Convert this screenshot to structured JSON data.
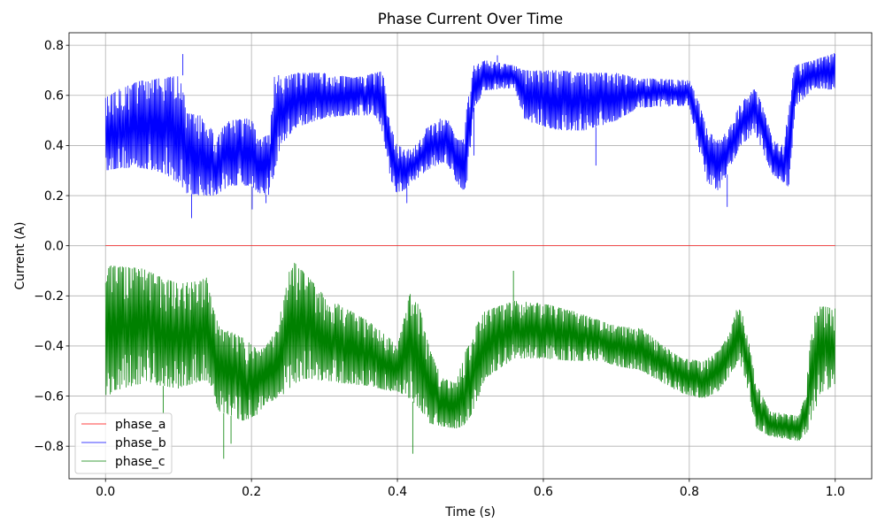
{
  "chart_data": {
    "type": "line",
    "title": "Phase Current Over Time",
    "xlabel": "Time (s)",
    "ylabel": "Current (A)",
    "xlim": [
      -0.05,
      1.05
    ],
    "ylim": [
      -0.93,
      0.85
    ],
    "grid": true,
    "legend": "lower-left",
    "xticks": [
      {
        "value": 0.0,
        "label": "0.0"
      },
      {
        "value": 0.2,
        "label": "0.2"
      },
      {
        "value": 0.4,
        "label": "0.4"
      },
      {
        "value": 0.6,
        "label": "0.6"
      },
      {
        "value": 0.8,
        "label": "0.8"
      },
      {
        "value": 1.0,
        "label": "1.0"
      }
    ],
    "yticks": [
      {
        "value": 0.8,
        "label": "0.8"
      },
      {
        "value": 0.6,
        "label": "0.6"
      },
      {
        "value": 0.4,
        "label": "0.4"
      },
      {
        "value": 0.2,
        "label": "0.2"
      },
      {
        "value": 0.0,
        "label": "0.0"
      },
      {
        "value": -0.2,
        "label": "−0.2"
      },
      {
        "value": -0.4,
        "label": "−0.4"
      },
      {
        "value": -0.6,
        "label": "−0.6"
      },
      {
        "value": -0.8,
        "label": "−0.8"
      }
    ],
    "series": [
      {
        "name": "phase_a",
        "color": "#ff0000",
        "x": [
          0.0,
          1.0
        ],
        "y": [
          0.0,
          0.0
        ]
      },
      {
        "name": "phase_b",
        "color": "#0000ff",
        "x": [
          0.0,
          0.02,
          0.05,
          0.08,
          0.1,
          0.106,
          0.11,
          0.13,
          0.145,
          0.15,
          0.16,
          0.17,
          0.2,
          0.21,
          0.225,
          0.232,
          0.24,
          0.26,
          0.3,
          0.34,
          0.37,
          0.38,
          0.39,
          0.4,
          0.42,
          0.44,
          0.46,
          0.47,
          0.48,
          0.49,
          0.495,
          0.505,
          0.52,
          0.56,
          0.575,
          0.62,
          0.66,
          0.7,
          0.73,
          0.8,
          0.81,
          0.825,
          0.84,
          0.855,
          0.87,
          0.89,
          0.9,
          0.915,
          0.93,
          0.937,
          0.945,
          0.97,
          1.0
        ],
        "upper": [
          0.59,
          0.63,
          0.66,
          0.67,
          0.68,
          0.68,
          0.53,
          0.52,
          0.48,
          0.41,
          0.47,
          0.5,
          0.51,
          0.42,
          0.45,
          0.7,
          0.67,
          0.69,
          0.69,
          0.67,
          0.69,
          0.7,
          0.48,
          0.4,
          0.38,
          0.47,
          0.51,
          0.5,
          0.43,
          0.42,
          0.55,
          0.72,
          0.74,
          0.72,
          0.7,
          0.7,
          0.69,
          0.69,
          0.67,
          0.66,
          0.6,
          0.46,
          0.42,
          0.47,
          0.57,
          0.63,
          0.56,
          0.42,
          0.4,
          0.6,
          0.72,
          0.74,
          0.77
        ],
        "lower": [
          0.3,
          0.31,
          0.31,
          0.29,
          0.25,
          0.23,
          0.21,
          0.2,
          0.2,
          0.2,
          0.22,
          0.24,
          0.24,
          0.21,
          0.2,
          0.3,
          0.4,
          0.47,
          0.51,
          0.52,
          0.52,
          0.45,
          0.27,
          0.2,
          0.25,
          0.3,
          0.33,
          0.32,
          0.26,
          0.22,
          0.24,
          0.55,
          0.62,
          0.63,
          0.5,
          0.46,
          0.46,
          0.5,
          0.55,
          0.56,
          0.42,
          0.25,
          0.22,
          0.3,
          0.4,
          0.45,
          0.38,
          0.28,
          0.25,
          0.23,
          0.55,
          0.63,
          0.62
        ],
        "spikes": [
          [
            0.106,
            0.765
          ],
          [
            0.118,
            0.11
          ],
          [
            0.201,
            0.145
          ],
          [
            0.22,
            0.17
          ],
          [
            0.413,
            0.17
          ],
          [
            0.505,
            0.36
          ],
          [
            0.537,
            0.76
          ],
          [
            0.672,
            0.32
          ],
          [
            0.852,
            0.155
          ]
        ]
      },
      {
        "name": "phase_c",
        "color": "#008000",
        "x": [
          0.0,
          0.01,
          0.05,
          0.08,
          0.1,
          0.13,
          0.14,
          0.145,
          0.155,
          0.19,
          0.21,
          0.22,
          0.235,
          0.245,
          0.252,
          0.258,
          0.28,
          0.3,
          0.33,
          0.36,
          0.39,
          0.4,
          0.417,
          0.43,
          0.445,
          0.46,
          0.48,
          0.49,
          0.505,
          0.52,
          0.56,
          0.6,
          0.64,
          0.68,
          0.7,
          0.735,
          0.76,
          0.79,
          0.82,
          0.84,
          0.855,
          0.868,
          0.88,
          0.892,
          0.91,
          0.95,
          0.959,
          0.965,
          0.972,
          0.98,
          1.0
        ],
        "upper": [
          -0.075,
          -0.08,
          -0.09,
          -0.13,
          -0.15,
          -0.14,
          -0.12,
          -0.22,
          -0.32,
          -0.37,
          -0.42,
          -0.4,
          -0.33,
          -0.2,
          -0.1,
          -0.065,
          -0.13,
          -0.2,
          -0.25,
          -0.3,
          -0.37,
          -0.4,
          -0.19,
          -0.24,
          -0.42,
          -0.52,
          -0.55,
          -0.45,
          -0.33,
          -0.26,
          -0.22,
          -0.23,
          -0.26,
          -0.3,
          -0.32,
          -0.33,
          -0.39,
          -0.45,
          -0.46,
          -0.42,
          -0.35,
          -0.22,
          -0.36,
          -0.55,
          -0.66,
          -0.68,
          -0.6,
          -0.4,
          -0.28,
          -0.24,
          -0.25
        ],
        "lower": [
          -0.62,
          -0.58,
          -0.55,
          -0.56,
          -0.57,
          -0.54,
          -0.54,
          -0.56,
          -0.66,
          -0.7,
          -0.67,
          -0.63,
          -0.61,
          -0.59,
          -0.57,
          -0.55,
          -0.53,
          -0.54,
          -0.55,
          -0.56,
          -0.58,
          -0.58,
          -0.61,
          -0.65,
          -0.71,
          -0.72,
          -0.73,
          -0.72,
          -0.66,
          -0.53,
          -0.45,
          -0.45,
          -0.46,
          -0.46,
          -0.48,
          -0.5,
          -0.54,
          -0.59,
          -0.61,
          -0.58,
          -0.52,
          -0.47,
          -0.57,
          -0.73,
          -0.76,
          -0.78,
          -0.76,
          -0.72,
          -0.66,
          -0.6,
          -0.55
        ],
        "spikes": [
          [
            0.079,
            -0.67
          ],
          [
            0.162,
            -0.85
          ],
          [
            0.172,
            -0.79
          ],
          [
            0.421,
            -0.83
          ],
          [
            0.559,
            -0.1
          ]
        ]
      }
    ]
  }
}
